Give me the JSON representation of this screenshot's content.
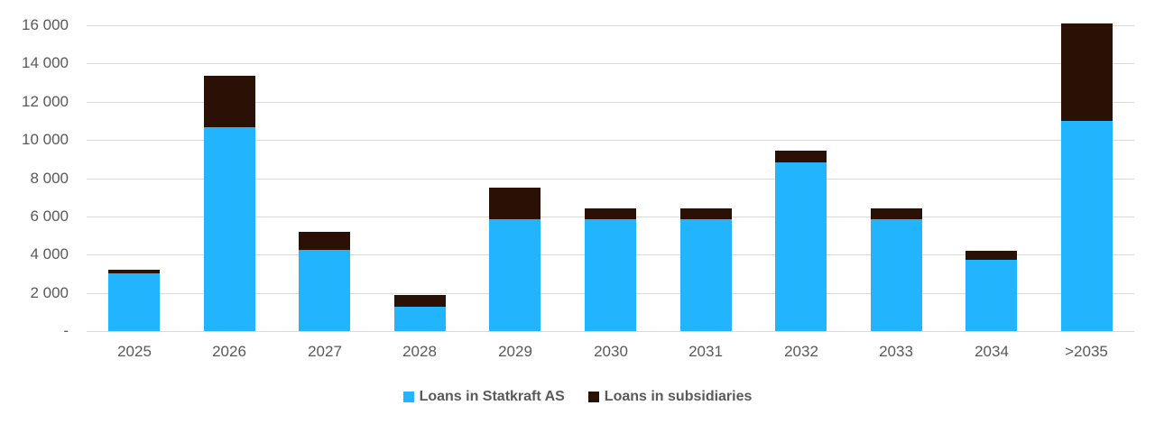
{
  "chart_data": {
    "type": "bar",
    "stacked": true,
    "title": "",
    "categories": [
      "2025",
      "2026",
      "2027",
      "2028",
      "2029",
      "2030",
      "2031",
      "2032",
      "2033",
      "2034",
      ">2035"
    ],
    "series": [
      {
        "name": "Loans in Statkraft AS",
        "color": "#22b4fc",
        "values": [
          3000,
          10650,
          4250,
          1300,
          5850,
          5850,
          5850,
          8850,
          5850,
          3750,
          11000
        ]
      },
      {
        "name": "Loans in subsidiaries",
        "color": "#2b1105",
        "values": [
          200,
          2700,
          950,
          600,
          1650,
          550,
          550,
          600,
          550,
          450,
          5100
        ]
      }
    ],
    "xlabel": "",
    "ylabel": "",
    "ylim": [
      0,
      16000
    ],
    "ytick_interval": 2000,
    "ytick_labels": [
      "-",
      "2 000",
      "4 000",
      "6 000",
      "8 000",
      "10 000",
      "12 000",
      "14 000",
      "16 000"
    ],
    "grid": true,
    "legend_position": "bottom",
    "grid_color": "#d9d9d9",
    "text_color": "#595959"
  }
}
